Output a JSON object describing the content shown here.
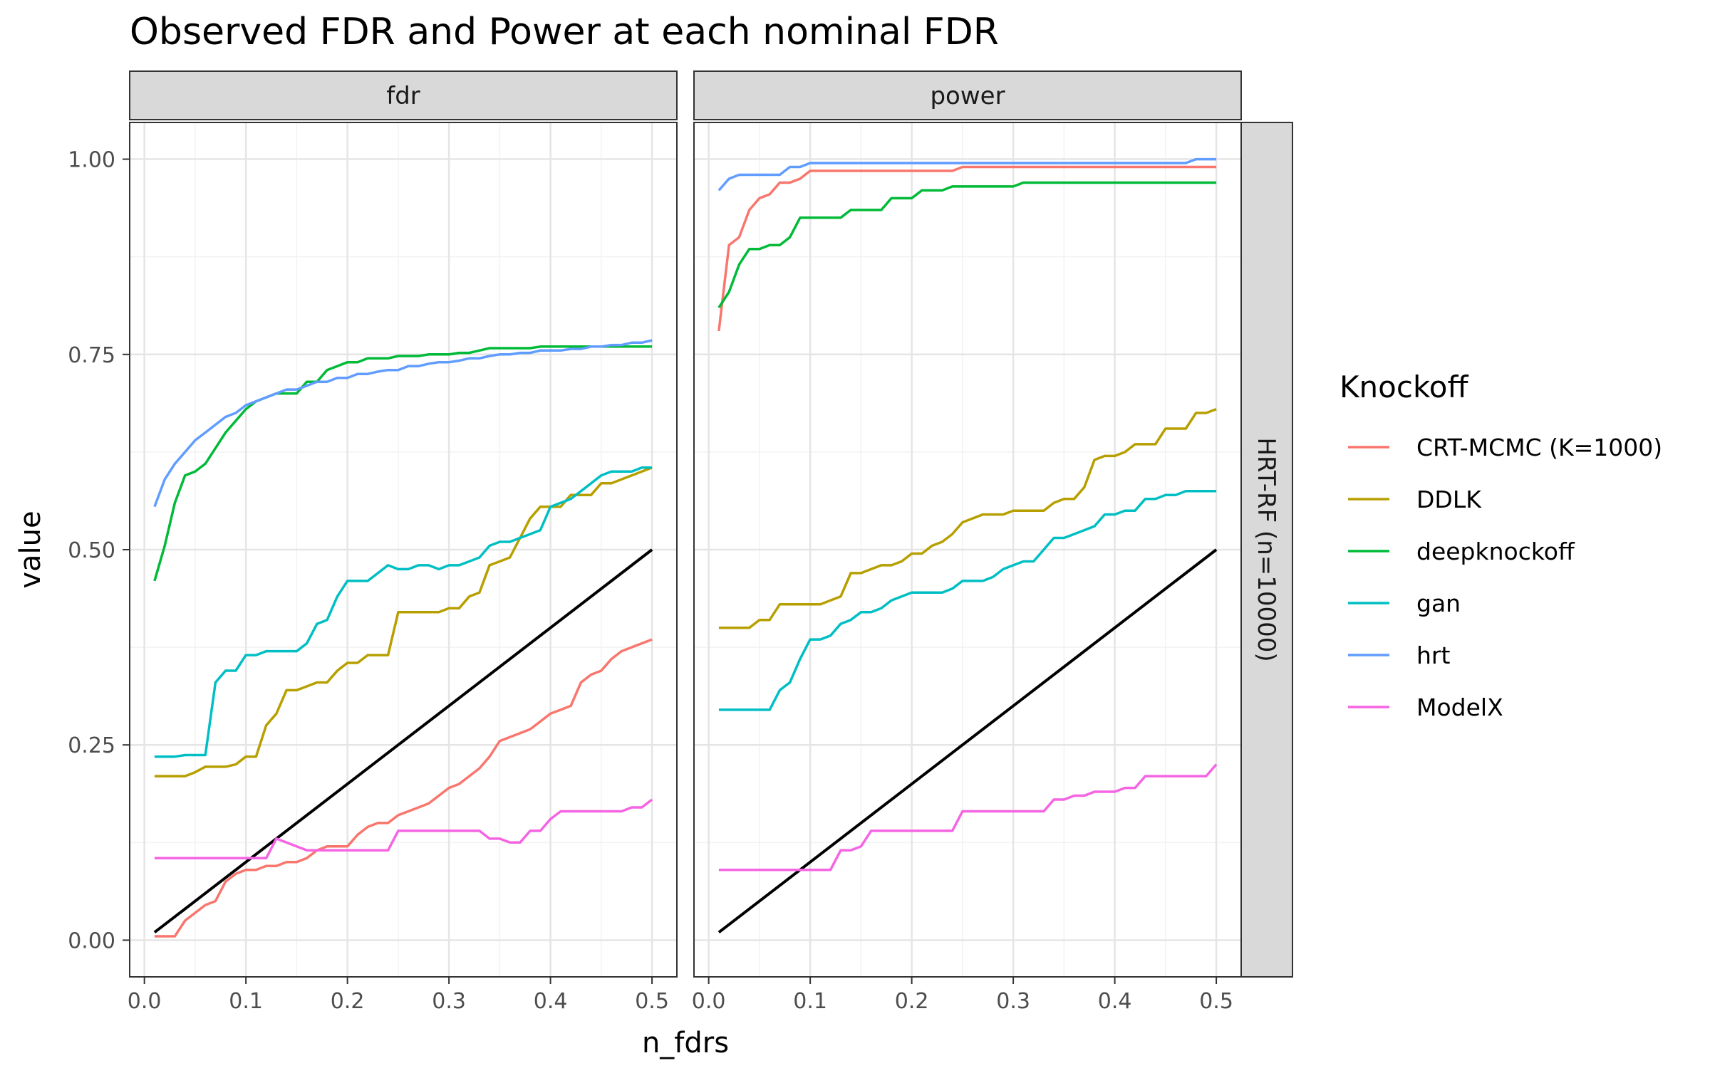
{
  "chart_data": {
    "type": "line",
    "title": "Observed FDR and Power at each nominal FDR",
    "xlabel": "n_fdrs",
    "ylabel": "value",
    "xlim": [
      0,
      0.5
    ],
    "ylim": [
      0,
      1
    ],
    "x_ticks": [
      "0.0",
      "0.1",
      "0.2",
      "0.3",
      "0.4",
      "0.5"
    ],
    "y_ticks": [
      "0.00",
      "0.25",
      "0.50",
      "0.75",
      "1.00"
    ],
    "grid": true,
    "legend_position": "right",
    "legend_title": "Knockoff",
    "facets": [
      "fdr",
      "power"
    ],
    "row_facet": "HRT-RF (n=10000)",
    "reference_line": {
      "x": [
        0.01,
        0.5
      ],
      "y": [
        0.01,
        0.5
      ],
      "color": "#000000"
    },
    "x": [
      0.01,
      0.02,
      0.03,
      0.04,
      0.05,
      0.06,
      0.07,
      0.08,
      0.09,
      0.1,
      0.11,
      0.12,
      0.13,
      0.14,
      0.15,
      0.16,
      0.17,
      0.18,
      0.19,
      0.2,
      0.21,
      0.22,
      0.23,
      0.24,
      0.25,
      0.26,
      0.27,
      0.28,
      0.29,
      0.3,
      0.31,
      0.32,
      0.33,
      0.34,
      0.35,
      0.36,
      0.37,
      0.38,
      0.39,
      0.4,
      0.41,
      0.42,
      0.43,
      0.44,
      0.45,
      0.46,
      0.47,
      0.48,
      0.49,
      0.5
    ],
    "series": [
      {
        "name": "CRT-MCMC (K=1000)",
        "color": "#F8766D",
        "fdr": [
          0.005,
          0.005,
          0.005,
          0.025,
          0.035,
          0.045,
          0.05,
          0.075,
          0.085,
          0.09,
          0.09,
          0.095,
          0.095,
          0.1,
          0.1,
          0.105,
          0.115,
          0.12,
          0.12,
          0.12,
          0.135,
          0.145,
          0.15,
          0.15,
          0.16,
          0.165,
          0.17,
          0.175,
          0.185,
          0.195,
          0.2,
          0.21,
          0.22,
          0.235,
          0.255,
          0.26,
          0.265,
          0.27,
          0.28,
          0.29,
          0.295,
          0.3,
          0.33,
          0.34,
          0.345,
          0.36,
          0.37,
          0.375,
          0.38,
          0.385
        ],
        "power": [
          0.78,
          0.89,
          0.9,
          0.935,
          0.95,
          0.955,
          0.97,
          0.97,
          0.975,
          0.985,
          0.985,
          0.985,
          0.985,
          0.985,
          0.985,
          0.985,
          0.985,
          0.985,
          0.985,
          0.985,
          0.985,
          0.985,
          0.985,
          0.985,
          0.99,
          0.99,
          0.99,
          0.99,
          0.99,
          0.99,
          0.99,
          0.99,
          0.99,
          0.99,
          0.99,
          0.99,
          0.99,
          0.99,
          0.99,
          0.99,
          0.99,
          0.99,
          0.99,
          0.99,
          0.99,
          0.99,
          0.99,
          0.99,
          0.99,
          0.99
        ]
      },
      {
        "name": "DDLK",
        "color": "#B79F00",
        "fdr": [
          0.21,
          0.21,
          0.21,
          0.21,
          0.215,
          0.222,
          0.222,
          0.222,
          0.225,
          0.235,
          0.235,
          0.275,
          0.29,
          0.32,
          0.32,
          0.325,
          0.33,
          0.33,
          0.345,
          0.355,
          0.355,
          0.365,
          0.365,
          0.365,
          0.42,
          0.42,
          0.42,
          0.42,
          0.42,
          0.425,
          0.425,
          0.44,
          0.445,
          0.48,
          0.485,
          0.49,
          0.515,
          0.54,
          0.555,
          0.555,
          0.555,
          0.57,
          0.57,
          0.57,
          0.585,
          0.585,
          0.59,
          0.595,
          0.6,
          0.605
        ],
        "power": [
          0.4,
          0.4,
          0.4,
          0.4,
          0.41,
          0.41,
          0.43,
          0.43,
          0.43,
          0.43,
          0.43,
          0.435,
          0.44,
          0.47,
          0.47,
          0.475,
          0.48,
          0.48,
          0.485,
          0.495,
          0.495,
          0.505,
          0.51,
          0.52,
          0.535,
          0.54,
          0.545,
          0.545,
          0.545,
          0.55,
          0.55,
          0.55,
          0.55,
          0.56,
          0.565,
          0.565,
          0.58,
          0.615,
          0.62,
          0.62,
          0.625,
          0.635,
          0.635,
          0.635,
          0.655,
          0.655,
          0.655,
          0.675,
          0.675,
          0.68
        ]
      },
      {
        "name": "deepknockoff",
        "color": "#00BA38",
        "fdr": [
          0.46,
          0.505,
          0.56,
          0.595,
          0.6,
          0.61,
          0.63,
          0.65,
          0.665,
          0.68,
          0.69,
          0.695,
          0.7,
          0.7,
          0.7,
          0.715,
          0.715,
          0.73,
          0.735,
          0.74,
          0.74,
          0.745,
          0.745,
          0.745,
          0.748,
          0.748,
          0.748,
          0.75,
          0.75,
          0.75,
          0.752,
          0.752,
          0.755,
          0.758,
          0.758,
          0.758,
          0.758,
          0.758,
          0.76,
          0.76,
          0.76,
          0.76,
          0.76,
          0.76,
          0.76,
          0.76,
          0.76,
          0.76,
          0.76,
          0.76
        ],
        "power": [
          0.81,
          0.83,
          0.865,
          0.885,
          0.885,
          0.89,
          0.89,
          0.9,
          0.925,
          0.925,
          0.925,
          0.925,
          0.925,
          0.935,
          0.935,
          0.935,
          0.935,
          0.95,
          0.95,
          0.95,
          0.96,
          0.96,
          0.96,
          0.965,
          0.965,
          0.965,
          0.965,
          0.965,
          0.965,
          0.965,
          0.97,
          0.97,
          0.97,
          0.97,
          0.97,
          0.97,
          0.97,
          0.97,
          0.97,
          0.97,
          0.97,
          0.97,
          0.97,
          0.97,
          0.97,
          0.97,
          0.97,
          0.97,
          0.97,
          0.97
        ]
      },
      {
        "name": "gan",
        "color": "#00BFC4",
        "fdr": [
          0.235,
          0.235,
          0.235,
          0.237,
          0.237,
          0.237,
          0.33,
          0.345,
          0.345,
          0.365,
          0.365,
          0.37,
          0.37,
          0.37,
          0.37,
          0.38,
          0.405,
          0.41,
          0.44,
          0.46,
          0.46,
          0.46,
          0.47,
          0.48,
          0.475,
          0.475,
          0.48,
          0.48,
          0.475,
          0.48,
          0.48,
          0.485,
          0.49,
          0.505,
          0.51,
          0.51,
          0.515,
          0.52,
          0.525,
          0.555,
          0.56,
          0.565,
          0.575,
          0.585,
          0.595,
          0.6,
          0.6,
          0.6,
          0.605,
          0.605
        ],
        "power": [
          0.295,
          0.295,
          0.295,
          0.295,
          0.295,
          0.295,
          0.32,
          0.33,
          0.36,
          0.385,
          0.385,
          0.39,
          0.405,
          0.41,
          0.42,
          0.42,
          0.425,
          0.435,
          0.44,
          0.445,
          0.445,
          0.445,
          0.445,
          0.45,
          0.46,
          0.46,
          0.46,
          0.465,
          0.475,
          0.48,
          0.485,
          0.485,
          0.5,
          0.515,
          0.515,
          0.52,
          0.525,
          0.53,
          0.545,
          0.545,
          0.55,
          0.55,
          0.565,
          0.565,
          0.57,
          0.57,
          0.575,
          0.575,
          0.575,
          0.575
        ]
      },
      {
        "name": "hrt",
        "color": "#619CFF",
        "fdr": [
          0.555,
          0.59,
          0.61,
          0.625,
          0.64,
          0.65,
          0.66,
          0.67,
          0.675,
          0.685,
          0.69,
          0.695,
          0.7,
          0.705,
          0.705,
          0.71,
          0.715,
          0.715,
          0.72,
          0.72,
          0.725,
          0.725,
          0.728,
          0.73,
          0.73,
          0.735,
          0.735,
          0.738,
          0.74,
          0.74,
          0.742,
          0.745,
          0.745,
          0.748,
          0.75,
          0.75,
          0.752,
          0.752,
          0.755,
          0.755,
          0.755,
          0.757,
          0.757,
          0.76,
          0.76,
          0.762,
          0.762,
          0.765,
          0.765,
          0.768
        ],
        "power": [
          0.96,
          0.975,
          0.98,
          0.98,
          0.98,
          0.98,
          0.98,
          0.99,
          0.99,
          0.995,
          0.995,
          0.995,
          0.995,
          0.995,
          0.995,
          0.995,
          0.995,
          0.995,
          0.995,
          0.995,
          0.995,
          0.995,
          0.995,
          0.995,
          0.995,
          0.995,
          0.995,
          0.995,
          0.995,
          0.995,
          0.995,
          0.995,
          0.995,
          0.995,
          0.995,
          0.995,
          0.995,
          0.995,
          0.995,
          0.995,
          0.995,
          0.995,
          0.995,
          0.995,
          0.995,
          0.995,
          0.995,
          1.0,
          1.0,
          1.0
        ]
      },
      {
        "name": "ModelX",
        "color": "#F564E3",
        "fdr": [
          0.105,
          0.105,
          0.105,
          0.105,
          0.105,
          0.105,
          0.105,
          0.105,
          0.105,
          0.105,
          0.105,
          0.105,
          0.13,
          0.125,
          0.12,
          0.115,
          0.115,
          0.115,
          0.115,
          0.115,
          0.115,
          0.115,
          0.115,
          0.115,
          0.14,
          0.14,
          0.14,
          0.14,
          0.14,
          0.14,
          0.14,
          0.14,
          0.14,
          0.13,
          0.13,
          0.125,
          0.125,
          0.14,
          0.14,
          0.155,
          0.165,
          0.165,
          0.165,
          0.165,
          0.165,
          0.165,
          0.165,
          0.17,
          0.17,
          0.18
        ],
        "power": [
          0.09,
          0.09,
          0.09,
          0.09,
          0.09,
          0.09,
          0.09,
          0.09,
          0.09,
          0.09,
          0.09,
          0.09,
          0.115,
          0.115,
          0.12,
          0.14,
          0.14,
          0.14,
          0.14,
          0.14,
          0.14,
          0.14,
          0.14,
          0.14,
          0.165,
          0.165,
          0.165,
          0.165,
          0.165,
          0.165,
          0.165,
          0.165,
          0.165,
          0.18,
          0.18,
          0.185,
          0.185,
          0.19,
          0.19,
          0.19,
          0.195,
          0.195,
          0.21,
          0.21,
          0.21,
          0.21,
          0.21,
          0.21,
          0.21,
          0.225
        ]
      }
    ]
  }
}
